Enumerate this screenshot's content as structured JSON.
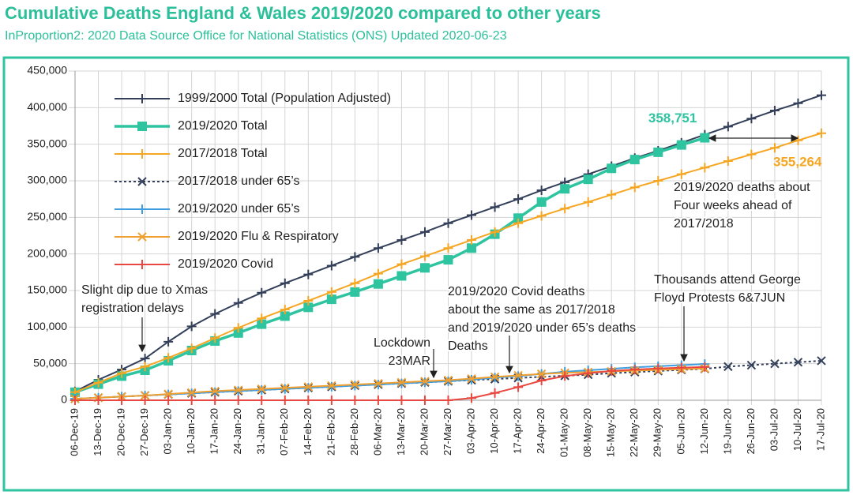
{
  "chart_data": {
    "type": "line",
    "title": "Cumulative Deaths England & Wales 2019/2020 compared to other years",
    "subtitle": "InProportion2: 2020 Data Source Office for National Statistics (ONS) Updated 2020-06-23",
    "categories": [
      "06-Dec-19",
      "13-Dec-19",
      "20-Dec-19",
      "27-Dec-19",
      "03-Jan-20",
      "10-Jan-20",
      "17-Jan-20",
      "24-Jan-20",
      "31-Jan-20",
      "07-Feb-20",
      "14-Feb-20",
      "21-Feb-20",
      "28-Feb-20",
      "06-Mar-20",
      "13-Mar-20",
      "20-Mar-20",
      "27-Mar-20",
      "03-Apr-20",
      "10-Apr-20",
      "17-Apr-20",
      "24-Apr-20",
      "01-May-20",
      "08-May-20",
      "15-May-20",
      "22-May-20",
      "29-May-20",
      "05-Jun-20",
      "12-Jun-20",
      "19-Jun-20",
      "26-Jun-20",
      "03-Jul-20",
      "10-Jul-20",
      "17-Jul-20"
    ],
    "ylim": [
      0,
      450000
    ],
    "yticks": [
      0,
      {
        "value": 50000,
        "label": "50,000"
      },
      {
        "value": 100000,
        "label": "100,000"
      },
      {
        "value": 150000,
        "label": "150,000"
      },
      {
        "value": 200000,
        "label": "200,000"
      },
      {
        "value": 250000,
        "label": "250,000"
      },
      {
        "value": 300000,
        "label": "300,000"
      },
      {
        "value": 350000,
        "label": "350,000"
      },
      {
        "value": 400000,
        "label": "400,000"
      },
      {
        "value": 450000,
        "label": "450,000"
      }
    ],
    "grid": true,
    "legend": "top-left",
    "series": [
      {
        "name": "1999/2000 Total (Population Adjusted)",
        "color": "#34405a",
        "marker": "plus",
        "dashed": false,
        "values": [
          12000,
          28000,
          42000,
          57000,
          80000,
          101000,
          118000,
          133000,
          147000,
          160000,
          172000,
          184000,
          196000,
          208000,
          219000,
          230000,
          242000,
          253000,
          264000,
          275000,
          287000,
          298000,
          309000,
          320000,
          331000,
          341000,
          352000,
          363000,
          374000,
          385000,
          396000,
          406000,
          417000
        ]
      },
      {
        "name": "2019/2020 Total",
        "color": "#2ec4a0",
        "marker": "square",
        "dashed": false,
        "values": [
          11000,
          22000,
          33000,
          41000,
          54000,
          68000,
          81000,
          92000,
          104000,
          115000,
          127000,
          138000,
          148000,
          159000,
          170000,
          181000,
          192000,
          208000,
          227000,
          249000,
          271000,
          289000,
          302000,
          317000,
          329000,
          339000,
          349000,
          358751,
          null,
          null,
          null,
          null,
          null
        ],
        "value_labels": [
          null,
          null,
          null,
          null,
          null,
          null,
          null,
          null,
          null,
          null,
          null,
          null,
          null,
          null,
          null,
          null,
          null,
          null,
          null,
          null,
          null,
          null,
          null,
          null,
          null,
          null,
          null,
          "358,751",
          null,
          null,
          null,
          null,
          null
        ]
      },
      {
        "name": "2017/2018 Total",
        "color": "#f5a623",
        "marker": "plus",
        "dashed": false,
        "values": [
          11000,
          24000,
          37000,
          46000,
          58000,
          71000,
          85000,
          99000,
          112000,
          124000,
          136000,
          148000,
          160000,
          173000,
          186000,
          197000,
          208000,
          219000,
          230000,
          242000,
          252000,
          262000,
          271000,
          281000,
          291000,
          300000,
          309000,
          318000,
          327000,
          336000,
          345000,
          355264,
          365000
        ],
        "value_labels": [
          null,
          null,
          null,
          null,
          null,
          null,
          null,
          null,
          null,
          null,
          null,
          null,
          null,
          null,
          null,
          null,
          null,
          null,
          null,
          null,
          null,
          null,
          null,
          null,
          null,
          null,
          null,
          null,
          null,
          null,
          null,
          "355,264",
          null
        ]
      },
      {
        "name": "2017/2018 under 65’s",
        "color": "#34405a",
        "marker": "x",
        "dashed": true,
        "values": [
          2000,
          3500,
          5000,
          6500,
          8000,
          9500,
          11000,
          12500,
          14000,
          15500,
          17000,
          18500,
          20000,
          21500,
          23000,
          24500,
          26000,
          27500,
          29000,
          30500,
          32000,
          33500,
          35000,
          37000,
          38500,
          40000,
          41500,
          43000,
          46000,
          48000,
          50000,
          52000,
          54000
        ]
      },
      {
        "name": "2019/2020 under 65’s",
        "color": "#3e9ee0",
        "marker": "plus",
        "dashed": false,
        "values": [
          2000,
          3500,
          5000,
          6500,
          8000,
          9500,
          11000,
          12500,
          14000,
          15500,
          17000,
          18500,
          20000,
          21500,
          23000,
          24500,
          26000,
          28000,
          31000,
          33000,
          36000,
          39000,
          41000,
          43000,
          45000,
          46500,
          48000,
          49500,
          null,
          null,
          null,
          null,
          null
        ]
      },
      {
        "name": "2019/2020 Flu & Respiratory",
        "color": "#f0a030",
        "marker": "x",
        "dashed": false,
        "values": [
          2000,
          3500,
          5000,
          6500,
          8500,
          10500,
          12500,
          14000,
          15500,
          17000,
          18500,
          20000,
          21500,
          23000,
          24500,
          26000,
          27500,
          29500,
          32000,
          34000,
          36000,
          37500,
          38500,
          39500,
          40500,
          41500,
          42500,
          43500,
          null,
          null,
          null,
          null,
          null
        ]
      },
      {
        "name": "2019/2020 Covid",
        "color": "#e8483f",
        "marker": "plus",
        "dashed": false,
        "values": [
          0,
          0,
          0,
          0,
          0,
          0,
          0,
          0,
          0,
          0,
          0,
          0,
          0,
          0,
          0,
          0,
          0,
          3000,
          10000,
          18000,
          27000,
          33000,
          37000,
          40000,
          42000,
          43500,
          44500,
          45500,
          null,
          null,
          null,
          null,
          null
        ]
      }
    ],
    "annotations": [
      [
        "Slight dip due to Xmas",
        "registration delays"
      ],
      [
        "Lockdown",
        "23MAR"
      ],
      [
        "2019/2020 Covid deaths",
        "about the same as  2017/2018",
        "and 2019/2020 under 65’s deaths",
        "Deaths"
      ],
      [
        "Thousands attend George",
        "Floyd Protests 6&7JUN"
      ],
      [
        "2019/2020 deaths about",
        "Four weeks ahead of",
        "2017/2018"
      ]
    ]
  }
}
